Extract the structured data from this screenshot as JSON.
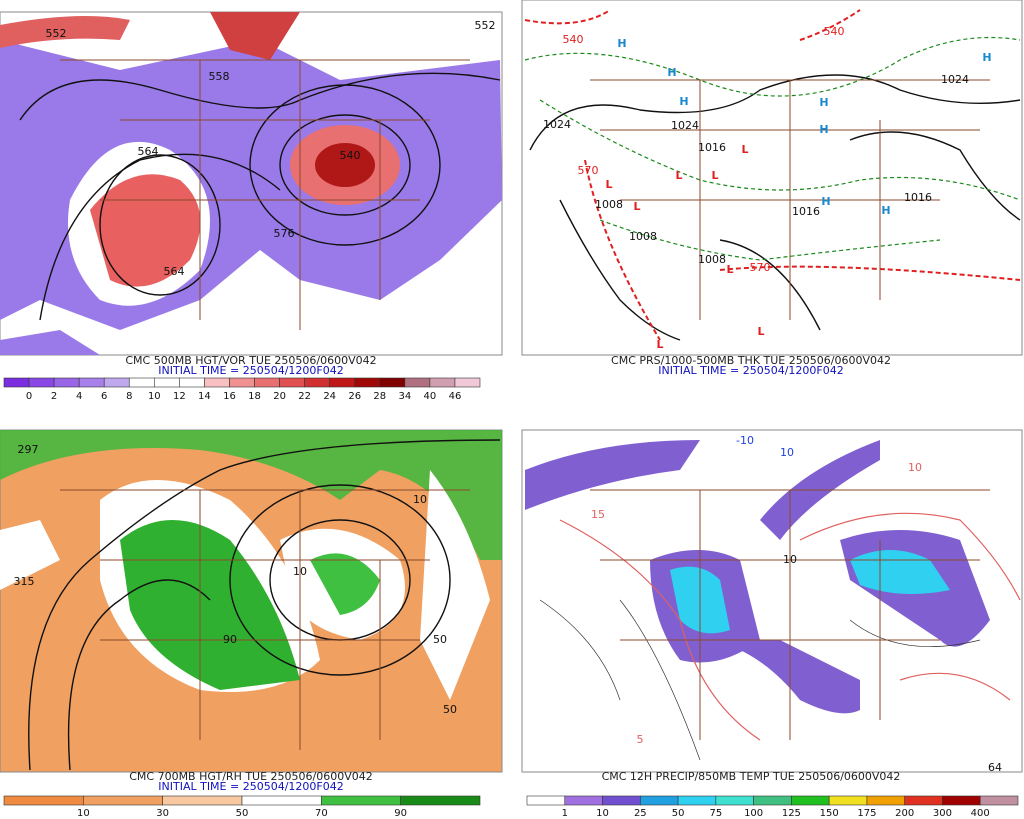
{
  "panels": [
    {
      "caption": "CMC 500MB HGT/VOR TUE 250506/0600V042",
      "initial": "INITIAL TIME = 250504/1200F042",
      "colorbar": [
        0,
        2,
        4,
        6,
        8,
        10,
        12,
        14,
        16,
        18,
        20,
        22,
        24,
        26,
        28,
        34,
        40,
        46
      ],
      "map_labels": [
        "552",
        "552",
        "558",
        "564",
        "576",
        "564",
        "540"
      ]
    },
    {
      "caption": "CMC PRS/1000-500MB THK TUE 250506/0600V042",
      "initial": "INITIAL TIME = 250504/1200F042",
      "map_labels": [
        "H",
        "H",
        "H",
        "H",
        "H",
        "H",
        "H",
        "H",
        "L",
        "L",
        "L",
        "L",
        "L",
        "L",
        "L",
        "L",
        "1024",
        "1024",
        "1016",
        "1008",
        "1008",
        "1008",
        "1016",
        "1016",
        "540",
        "540",
        "570",
        "570",
        "1024"
      ]
    },
    {
      "caption": "CMC 700MB HGT/RH TUE 250506/0600V042",
      "initial": "INITIAL TIME = 250504/1200F042",
      "colorbar": [
        10,
        30,
        50,
        70,
        90
      ],
      "map_labels": [
        "315",
        "297",
        "10",
        "50",
        "90",
        "50",
        "10"
      ]
    },
    {
      "caption": "CMC 12H PRECIP/850MB TEMP TUE 250506/0600V042",
      "colorbar": [
        1,
        10,
        25,
        50,
        75,
        100,
        125,
        150,
        175,
        200,
        300,
        400
      ],
      "map_labels": [
        "-10",
        "10",
        "10",
        "15",
        "10",
        "5",
        "64"
      ]
    }
  ]
}
